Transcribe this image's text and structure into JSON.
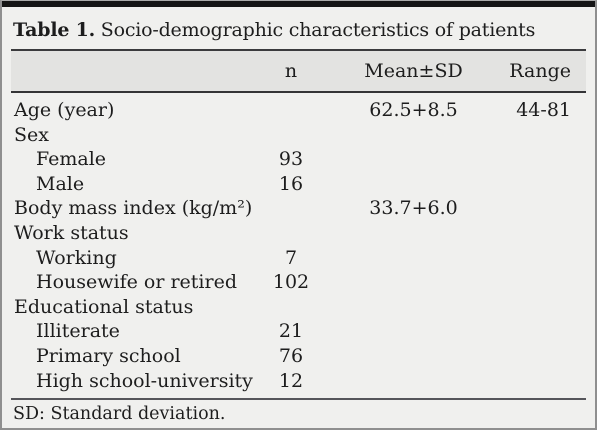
{
  "caption": {
    "label": "Table 1.",
    "text": "Socio-demographic characteristics of patients"
  },
  "columns": {
    "n": "n",
    "mean_sd": "Mean±SD",
    "range": "Range"
  },
  "rows": [
    {
      "label": "Age (year)",
      "indent": false,
      "mean": "62.5+8.5",
      "range": "44-81"
    },
    {
      "label": "Sex",
      "indent": false
    },
    {
      "label": "Female",
      "indent": true,
      "n": "93"
    },
    {
      "label": "Male",
      "indent": true,
      "n": "16"
    },
    {
      "label": "Body mass index (kg/m²)",
      "indent": false,
      "mean": "33.7+6.0"
    },
    {
      "label": "Work status",
      "indent": false
    },
    {
      "label": "Working",
      "indent": true,
      "n": "7"
    },
    {
      "label": "Housewife or retired",
      "indent": true,
      "n": "102"
    },
    {
      "label": "Educational status",
      "indent": false
    },
    {
      "label": "Illiterate",
      "indent": true,
      "n": "21"
    },
    {
      "label": "Primary school",
      "indent": true,
      "n": "76"
    },
    {
      "label": "High school-university",
      "indent": true,
      "n": "12"
    }
  ],
  "footnote": "SD: Standard deviation.",
  "colors": {
    "page_background": "#f0f0ee",
    "header_band": "#e3e3e1",
    "top_bar": "#151515",
    "rule_dark": "#3b3b3d",
    "outer_border": "#8f8f8f",
    "text": "#1d1d1d"
  }
}
